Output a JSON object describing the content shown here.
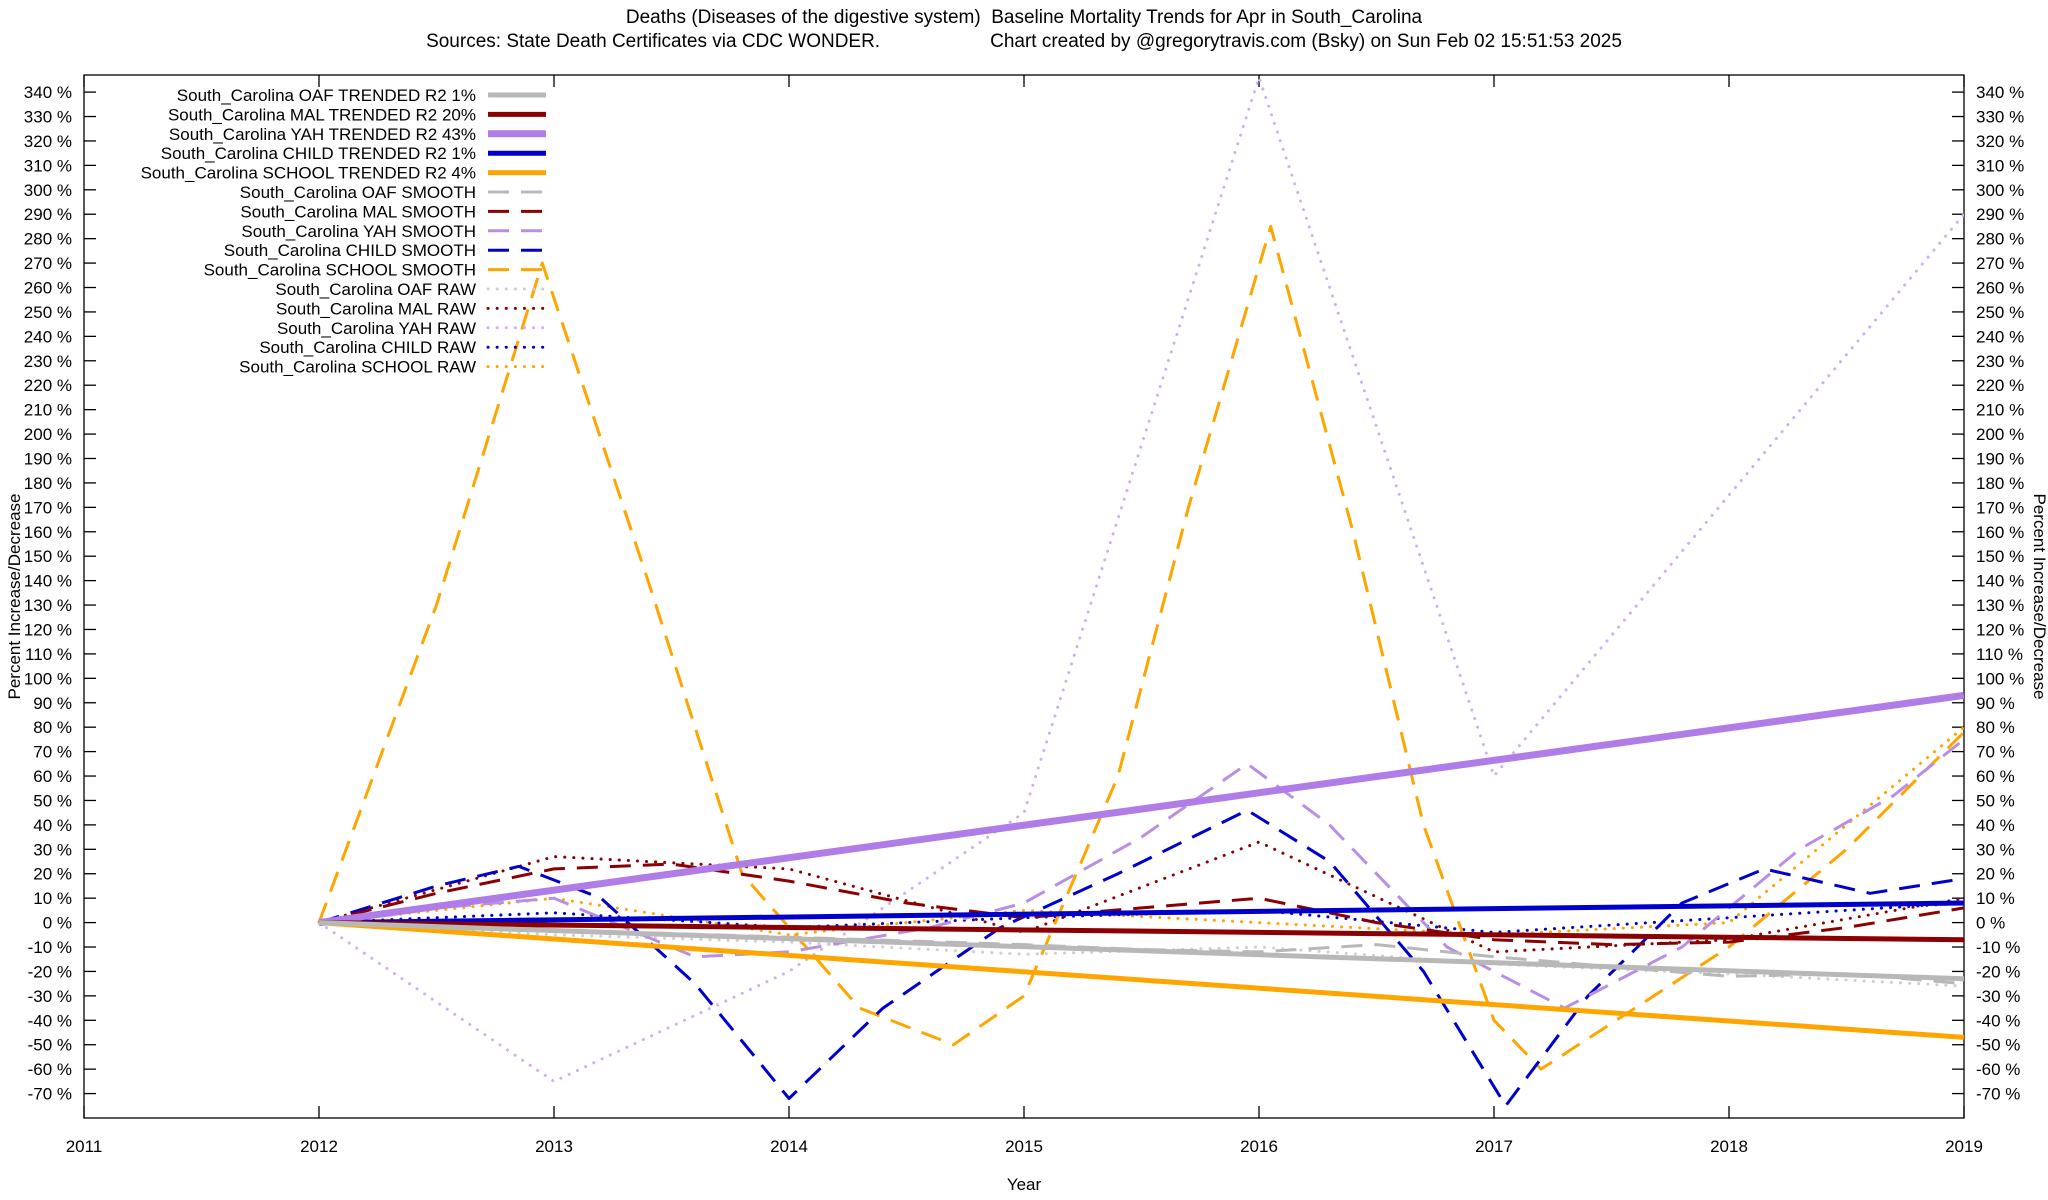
{
  "header": {
    "title": "Deaths (Diseases of the digestive system)  Baseline Mortality Trends for Apr in South_Carolina",
    "source_note": "Sources: State Death Certificates via CDC WONDER.",
    "credit_note": "Chart created by @gregorytravis.com (Bsky) on Sun Feb 02 15:51:53 2025"
  },
  "chart_data": {
    "type": "line",
    "title": "Deaths (Diseases of the digestive system)  Baseline Mortality Trends for Apr in South_Carolina",
    "xlabel": "Year",
    "ylabel_left": "Percent Increase/Decrease",
    "ylabel_right": "Percent Increase/Decrease",
    "grid": false,
    "legend_position": "top-left-inside",
    "x_range": [
      2011,
      2019
    ],
    "y_range": [
      -80,
      347
    ],
    "x_ticks": [
      2011,
      2012,
      2013,
      2014,
      2015,
      2016,
      2017,
      2018,
      2019
    ],
    "y_ticks": {
      "min": -70,
      "max": 340,
      "step": 10,
      "suffix": " %"
    },
    "series": [
      {
        "id": "oaf-trended",
        "label": "South_Carolina OAF TRENDED R2   1%",
        "style": "solid",
        "color": "#b8b8b8",
        "width": 5,
        "points": [
          [
            2012,
            0
          ],
          [
            2019,
            -23
          ]
        ]
      },
      {
        "id": "mal-trended",
        "label": "South_Carolina MAL TRENDED R2  20%",
        "style": "solid",
        "color": "#8b0000",
        "width": 5,
        "points": [
          [
            2012,
            0
          ],
          [
            2019,
            -7
          ]
        ]
      },
      {
        "id": "yah-trended",
        "label": "South_Carolina YAH TRENDED R2  43%",
        "style": "solid",
        "color": "#b07ce8",
        "width": 7,
        "points": [
          [
            2012,
            0
          ],
          [
            2019,
            93
          ]
        ]
      },
      {
        "id": "child-trended",
        "label": "South_Carolina CHILD TRENDED R2   1%",
        "style": "solid",
        "color": "#0000cd",
        "width": 5,
        "points": [
          [
            2012,
            0
          ],
          [
            2019,
            8
          ]
        ]
      },
      {
        "id": "school-trended",
        "label": "South_Carolina SCHOOL TRENDED R2   4%",
        "style": "solid",
        "color": "#ffa500",
        "width": 5,
        "points": [
          [
            2012,
            0
          ],
          [
            2019,
            -47
          ]
        ]
      },
      {
        "id": "oaf-smooth",
        "label": "South_Carolina OAF SMOOTH",
        "style": "dashed",
        "color": "#b8b8b8",
        "width": 3,
        "points": [
          [
            2012,
            0
          ],
          [
            2013,
            -3
          ],
          [
            2014,
            -6
          ],
          [
            2015,
            -9
          ],
          [
            2015.5,
            -11
          ],
          [
            2016,
            -12
          ],
          [
            2016.5,
            -9
          ],
          [
            2017,
            -14
          ],
          [
            2017.5,
            -18
          ],
          [
            2018,
            -22
          ],
          [
            2018.5,
            -21
          ],
          [
            2019,
            -25
          ]
        ]
      },
      {
        "id": "mal-smooth",
        "label": "South_Carolina MAL SMOOTH",
        "style": "dashed",
        "color": "#8b0000",
        "width": 3,
        "points": [
          [
            2012,
            0
          ],
          [
            2012.5,
            12
          ],
          [
            2013,
            22
          ],
          [
            2013.5,
            24
          ],
          [
            2014,
            17
          ],
          [
            2014.5,
            8
          ],
          [
            2015,
            2
          ],
          [
            2015.5,
            6
          ],
          [
            2016,
            10
          ],
          [
            2016.5,
            0
          ],
          [
            2017,
            -7
          ],
          [
            2017.5,
            -9
          ],
          [
            2018,
            -8
          ],
          [
            2018.5,
            -2
          ],
          [
            2019,
            6
          ]
        ]
      },
      {
        "id": "yah-smooth",
        "label": "South_Carolina YAH SMOOTH",
        "style": "dashed",
        "color": "#b98fe6",
        "width": 3,
        "points": [
          [
            2012,
            0
          ],
          [
            2012.5,
            6
          ],
          [
            2013,
            10
          ],
          [
            2013.6,
            -14
          ],
          [
            2014,
            -12
          ],
          [
            2014.6,
            -2
          ],
          [
            2015,
            8
          ],
          [
            2015.5,
            35
          ],
          [
            2015.95,
            65
          ],
          [
            2016.3,
            40
          ],
          [
            2016.8,
            -10
          ],
          [
            2017.3,
            -35
          ],
          [
            2017.8,
            -10
          ],
          [
            2018.3,
            30
          ],
          [
            2018.7,
            52
          ],
          [
            2019,
            75
          ]
        ]
      },
      {
        "id": "child-smooth",
        "label": "South_Carolina CHILD SMOOTH",
        "style": "dashed",
        "color": "#0000cd",
        "width": 3,
        "points": [
          [
            2012,
            0
          ],
          [
            2012.5,
            15
          ],
          [
            2012.85,
            23
          ],
          [
            2013.2,
            10
          ],
          [
            2013.6,
            -25
          ],
          [
            2014,
            -72
          ],
          [
            2014.4,
            -35
          ],
          [
            2014.9,
            -2
          ],
          [
            2015.4,
            20
          ],
          [
            2015.95,
            46
          ],
          [
            2016.3,
            25
          ],
          [
            2016.7,
            -20
          ],
          [
            2017.05,
            -75
          ],
          [
            2017.4,
            -30
          ],
          [
            2017.8,
            8
          ],
          [
            2018.15,
            22
          ],
          [
            2018.6,
            12
          ],
          [
            2019,
            18
          ]
        ]
      },
      {
        "id": "school-smooth",
        "label": "South_Carolina SCHOOL SMOOTH",
        "style": "dashed",
        "color": "#ffa500",
        "width": 3,
        "points": [
          [
            2012,
            0
          ],
          [
            2012.5,
            130
          ],
          [
            2012.95,
            270
          ],
          [
            2013.4,
            140
          ],
          [
            2013.8,
            20
          ],
          [
            2014.3,
            -35
          ],
          [
            2014.7,
            -50
          ],
          [
            2015,
            -30
          ],
          [
            2015.4,
            60
          ],
          [
            2015.7,
            170
          ],
          [
            2016.05,
            285
          ],
          [
            2016.4,
            160
          ],
          [
            2016.7,
            40
          ],
          [
            2017,
            -40
          ],
          [
            2017.2,
            -60
          ],
          [
            2017.6,
            -35
          ],
          [
            2018,
            -10
          ],
          [
            2018.5,
            30
          ],
          [
            2019,
            78
          ]
        ]
      },
      {
        "id": "oaf-raw",
        "label": "South_Carolina OAF RAW",
        "style": "dotted",
        "color": "#cfcfcf",
        "width": 3,
        "points": [
          [
            2012,
            0
          ],
          [
            2013,
            -5
          ],
          [
            2014,
            -8
          ],
          [
            2015,
            -13
          ],
          [
            2016,
            -10
          ],
          [
            2017,
            -17
          ],
          [
            2018,
            -21
          ],
          [
            2019,
            -26
          ]
        ]
      },
      {
        "id": "mal-raw",
        "label": "South_Carolina MAL RAW",
        "style": "dotted",
        "color": "#8b0000",
        "width": 3,
        "points": [
          [
            2012,
            0
          ],
          [
            2013,
            27
          ],
          [
            2014,
            22
          ],
          [
            2015,
            -4
          ],
          [
            2016,
            33
          ],
          [
            2017,
            -12
          ],
          [
            2018,
            -7
          ],
          [
            2019,
            10
          ]
        ]
      },
      {
        "id": "yah-raw",
        "label": "South_Carolina YAH RAW",
        "style": "dotted",
        "color": "#d2aef2",
        "width": 3,
        "points": [
          [
            2012,
            0
          ],
          [
            2013,
            -65
          ],
          [
            2014,
            -20
          ],
          [
            2015,
            45
          ],
          [
            2016,
            346
          ],
          [
            2017,
            60
          ],
          [
            2018,
            175
          ],
          [
            2019,
            290
          ]
        ]
      },
      {
        "id": "child-raw",
        "label": "South_Carolina CHILD RAW",
        "style": "dotted",
        "color": "#0000cd",
        "width": 3,
        "points": [
          [
            2012,
            0
          ],
          [
            2013,
            4
          ],
          [
            2014,
            -2
          ],
          [
            2015,
            2
          ],
          [
            2016,
            5
          ],
          [
            2017,
            -4
          ],
          [
            2018,
            2
          ],
          [
            2019,
            8
          ]
        ]
      },
      {
        "id": "school-raw",
        "label": "South_Carolina SCHOOL RAW",
        "style": "dotted",
        "color": "#ffa500",
        "width": 3,
        "points": [
          [
            2012,
            0
          ],
          [
            2013,
            10
          ],
          [
            2014,
            -5
          ],
          [
            2015,
            5
          ],
          [
            2016,
            0
          ],
          [
            2017,
            -5
          ],
          [
            2018,
            0
          ],
          [
            2019,
            80
          ]
        ]
      }
    ]
  }
}
